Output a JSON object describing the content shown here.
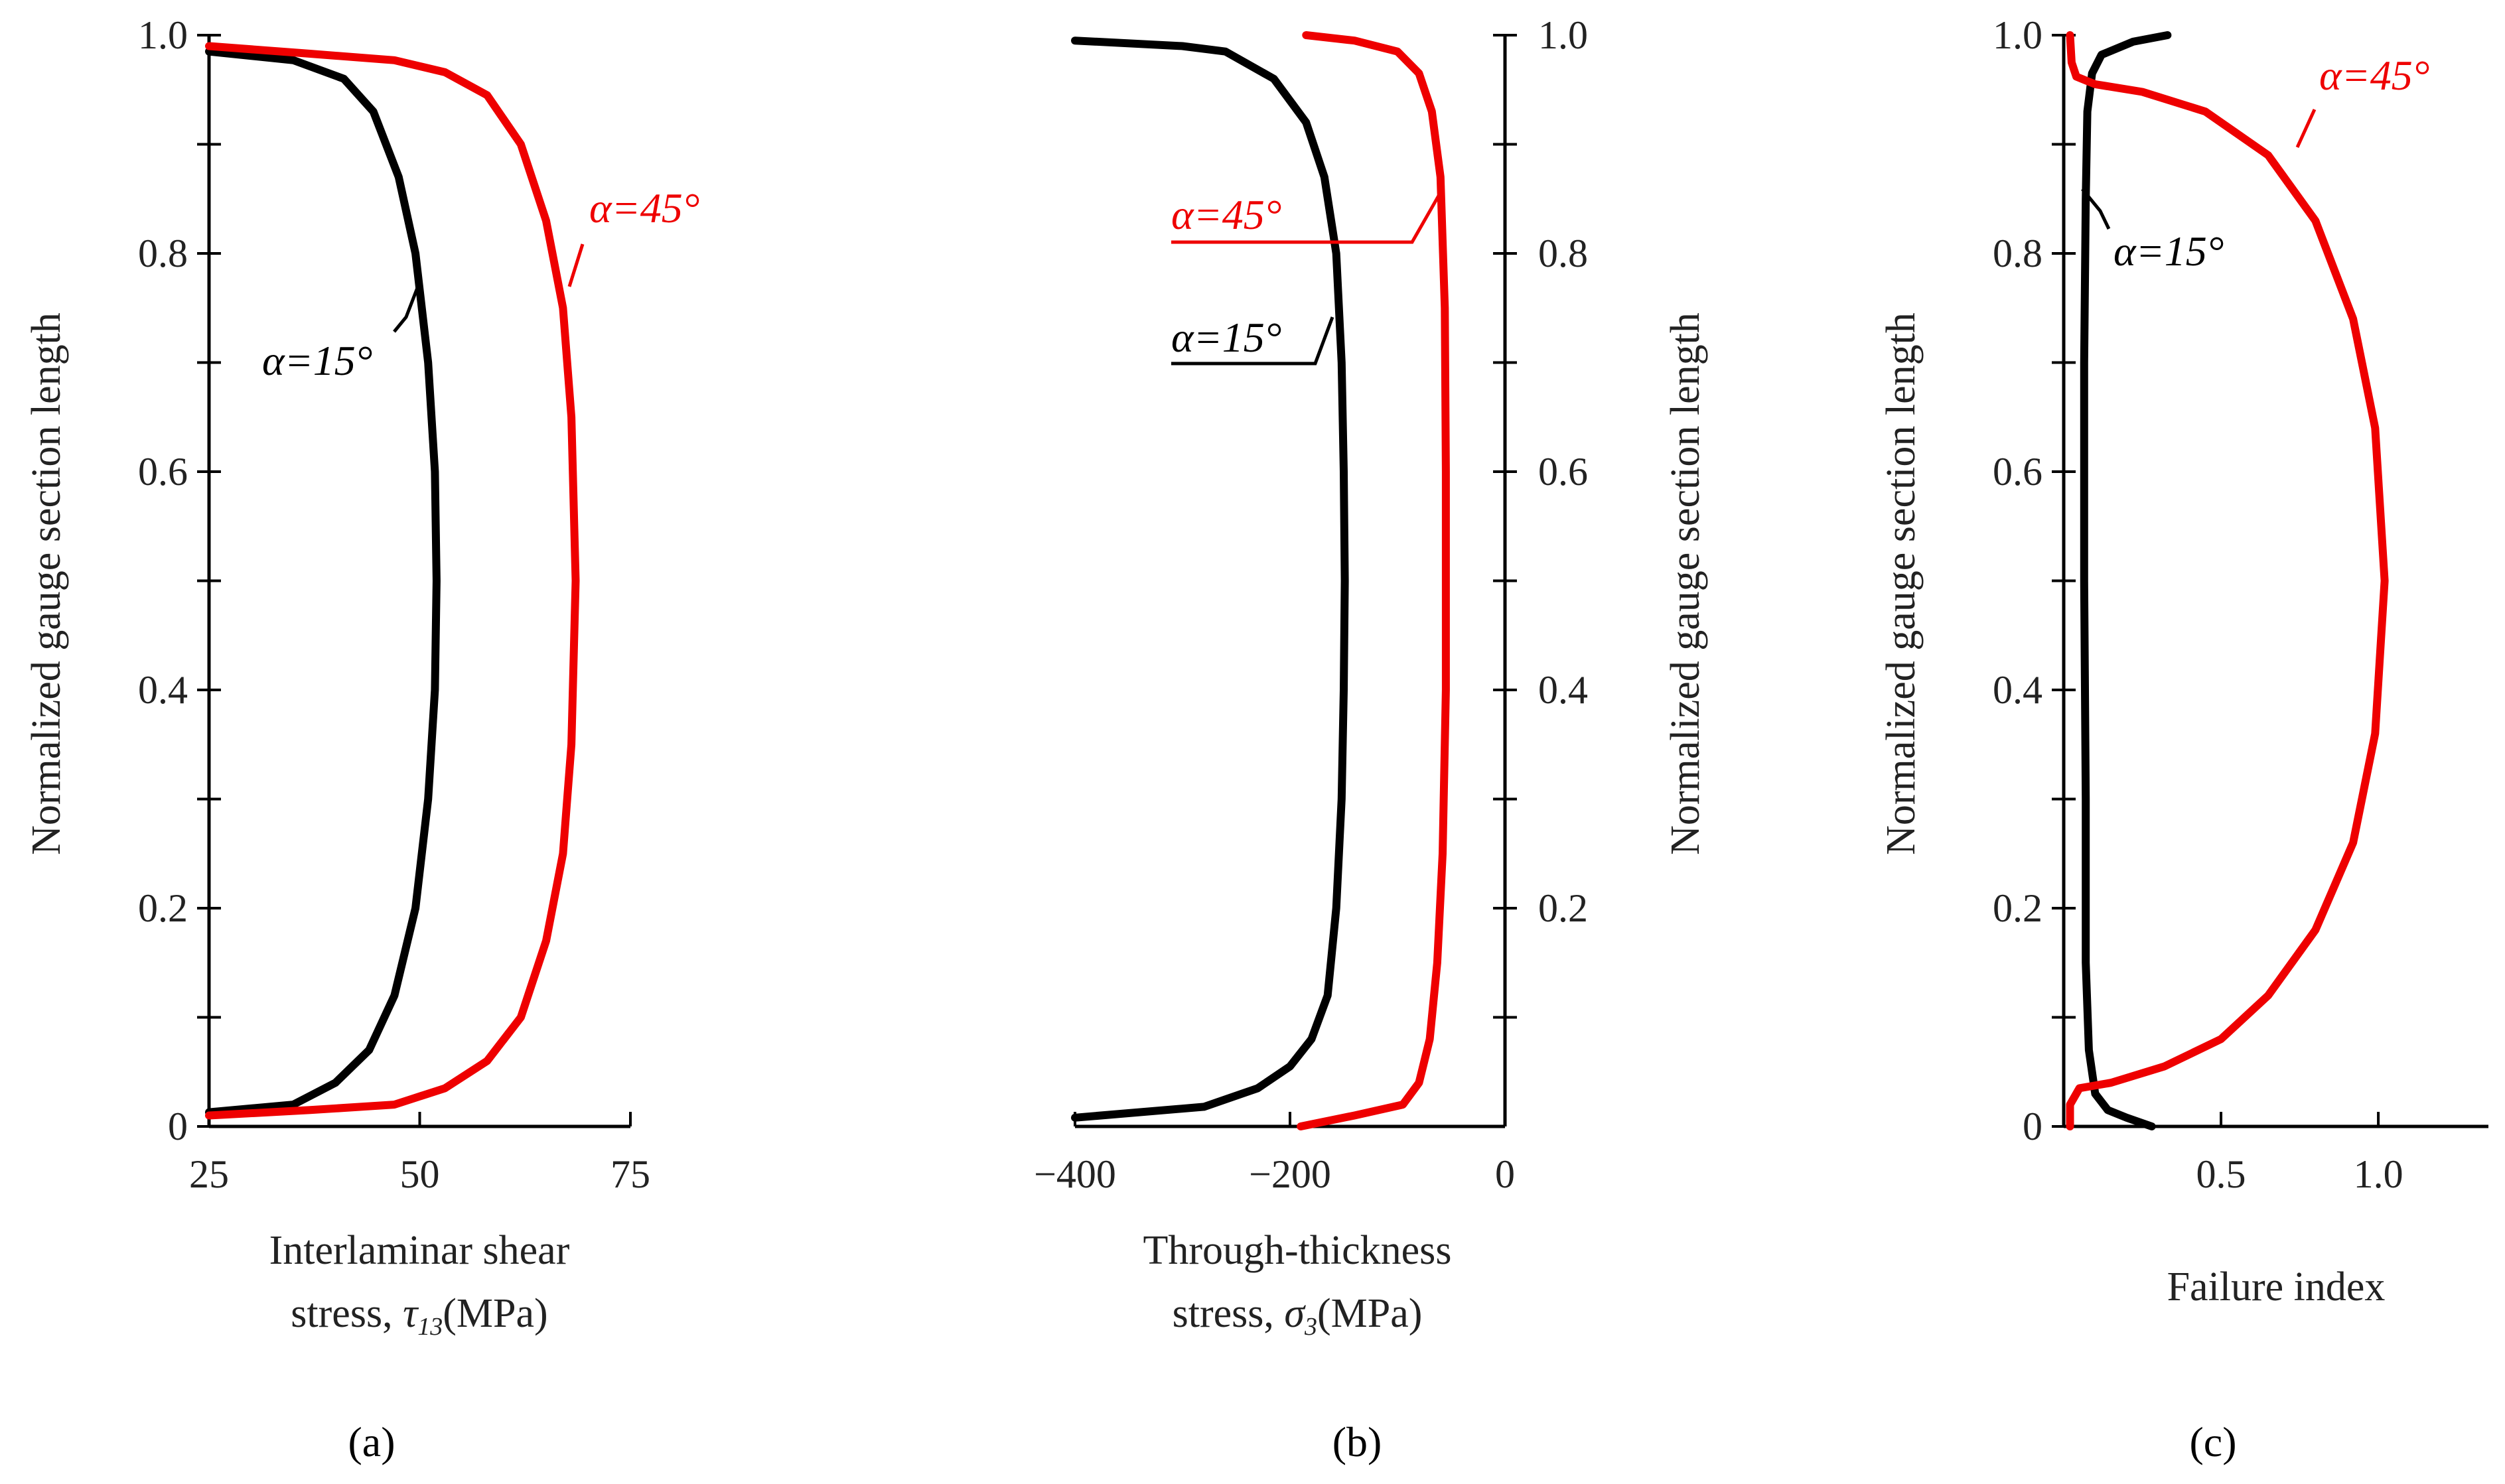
{
  "colors": {
    "alpha15": "#000000",
    "alpha45": "#ee0000"
  },
  "chart_data": [
    {
      "type": "line",
      "panel": "(a)",
      "xlabel_line1": "Interlaminar shear",
      "xlabel_line2_prefix": "stress, ",
      "xlabel_symbol": "τ",
      "xlabel_subscript": "13",
      "xlabel_unit": "(MPa)",
      "ylabel": "Normalized gauge section length",
      "xlim": [
        25,
        75
      ],
      "ylim": [
        0,
        1.0
      ],
      "xticks": [
        {
          "v": 25,
          "label": "25"
        },
        {
          "v": 50,
          "label": "50"
        },
        {
          "v": 75,
          "label": "75"
        }
      ],
      "yticks": [
        {
          "v": 0,
          "label": "0"
        },
        {
          "v": 0.1,
          "label": ""
        },
        {
          "v": 0.2,
          "label": "0.2"
        },
        {
          "v": 0.3,
          "label": ""
        },
        {
          "v": 0.4,
          "label": "0.4"
        },
        {
          "v": 0.5,
          "label": ""
        },
        {
          "v": 0.6,
          "label": "0.6"
        },
        {
          "v": 0.7,
          "label": ""
        },
        {
          "v": 0.8,
          "label": "0.8"
        },
        {
          "v": 0.9,
          "label": ""
        },
        {
          "v": 1.0,
          "label": "1.0"
        }
      ],
      "series": [
        {
          "name": "α=15°",
          "color": "#000000",
          "points": [
            [
              25,
              0.013
            ],
            [
              35,
              0.02
            ],
            [
              40,
              0.04
            ],
            [
              44,
              0.07
            ],
            [
              47,
              0.12
            ],
            [
              49.5,
              0.2
            ],
            [
              51,
              0.3
            ],
            [
              51.8,
              0.4
            ],
            [
              52,
              0.5
            ],
            [
              51.8,
              0.6
            ],
            [
              51,
              0.7
            ],
            [
              49.5,
              0.8
            ],
            [
              47.5,
              0.87
            ],
            [
              44.5,
              0.93
            ],
            [
              41,
              0.96
            ],
            [
              35,
              0.977
            ],
            [
              25,
              0.985
            ]
          ]
        },
        {
          "name": "α=45°",
          "color": "#ee0000",
          "points": [
            [
              25,
              0.01
            ],
            [
              37,
              0.015
            ],
            [
              47,
              0.02
            ],
            [
              53,
              0.035
            ],
            [
              58,
              0.06
            ],
            [
              62,
              0.1
            ],
            [
              65,
              0.17
            ],
            [
              67,
              0.25
            ],
            [
              68,
              0.35
            ],
            [
              68.5,
              0.5
            ],
            [
              68,
              0.65
            ],
            [
              67,
              0.75
            ],
            [
              65,
              0.83
            ],
            [
              62,
              0.9
            ],
            [
              58,
              0.945
            ],
            [
              53,
              0.966
            ],
            [
              47,
              0.977
            ],
            [
              37,
              0.983
            ],
            [
              25,
              0.99
            ]
          ]
        }
      ],
      "annotations": [
        {
          "text": "α=15°",
          "series": 0
        },
        {
          "text": "α=45°",
          "series": 1
        }
      ]
    },
    {
      "type": "line",
      "panel": "(b)",
      "xlabel_line1": "Through-thickness",
      "xlabel_line2_prefix": "stress, ",
      "xlabel_symbol": "σ",
      "xlabel_subscript": "3",
      "xlabel_unit": "(MPa)",
      "ylabel": "Normalized gauge section length",
      "xlim": [
        -400,
        0
      ],
      "ylim": [
        0,
        1.0
      ],
      "xticks": [
        {
          "v": -400,
          "label": "−400"
        },
        {
          "v": -200,
          "label": "−200"
        },
        {
          "v": 0,
          "label": "0"
        }
      ],
      "yticks": [
        {
          "v": 0.1,
          "label": ""
        },
        {
          "v": 0.2,
          "label": "0.2"
        },
        {
          "v": 0.3,
          "label": ""
        },
        {
          "v": 0.4,
          "label": "0.4"
        },
        {
          "v": 0.5,
          "label": ""
        },
        {
          "v": 0.6,
          "label": "0.6"
        },
        {
          "v": 0.7,
          "label": ""
        },
        {
          "v": 0.8,
          "label": "0.8"
        },
        {
          "v": 0.9,
          "label": ""
        },
        {
          "v": 1.0,
          "label": "1.0"
        }
      ],
      "series": [
        {
          "name": "α=15°",
          "color": "#000000",
          "points": [
            [
              -400,
              0.008
            ],
            [
              -280,
              0.018
            ],
            [
              -230,
              0.035
            ],
            [
              -200,
              0.055
            ],
            [
              -180,
              0.08
            ],
            [
              -165,
              0.12
            ],
            [
              -157,
              0.2
            ],
            [
              -152,
              0.3
            ],
            [
              -150,
              0.4
            ],
            [
              -149,
              0.5
            ],
            [
              -150,
              0.6
            ],
            [
              -152,
              0.7
            ],
            [
              -157,
              0.8
            ],
            [
              -168,
              0.87
            ],
            [
              -185,
              0.92
            ],
            [
              -215,
              0.96
            ],
            [
              -260,
              0.985
            ],
            [
              -300,
              0.99
            ],
            [
              -400,
              0.995
            ]
          ]
        },
        {
          "name": "α=45°",
          "color": "#ee0000",
          "points": [
            [
              -190,
              0.0
            ],
            [
              -140,
              0.01
            ],
            [
              -95,
              0.02
            ],
            [
              -80,
              0.04
            ],
            [
              -70,
              0.08
            ],
            [
              -63,
              0.15
            ],
            [
              -58,
              0.25
            ],
            [
              -55,
              0.4
            ],
            [
              -55,
              0.6
            ],
            [
              -56,
              0.75
            ],
            [
              -60,
              0.87
            ],
            [
              -68,
              0.93
            ],
            [
              -80,
              0.965
            ],
            [
              -100,
              0.985
            ],
            [
              -140,
              0.995
            ],
            [
              -185,
              1.0
            ]
          ]
        }
      ],
      "annotations": [
        {
          "text": "α=45°",
          "series": 1
        },
        {
          "text": "α=15°",
          "series": 0
        }
      ]
    },
    {
      "type": "line",
      "panel": "(c)",
      "xlabel_line1": "Failure index",
      "ylabel": "Normalized gauge section length",
      "xlim": [
        0,
        1.35
      ],
      "ylim": [
        0,
        1.0
      ],
      "xticks": [
        {
          "v": 0.5,
          "label": "0.5"
        },
        {
          "v": 1.0,
          "label": "1.0"
        }
      ],
      "yticks": [
        {
          "v": 0,
          "label": "0"
        },
        {
          "v": 0.1,
          "label": ""
        },
        {
          "v": 0.2,
          "label": "0.2"
        },
        {
          "v": 0.3,
          "label": ""
        },
        {
          "v": 0.4,
          "label": "0.4"
        },
        {
          "v": 0.5,
          "label": ""
        },
        {
          "v": 0.6,
          "label": "0.6"
        },
        {
          "v": 0.7,
          "label": ""
        },
        {
          "v": 0.8,
          "label": "0.8"
        },
        {
          "v": 0.9,
          "label": ""
        },
        {
          "v": 1.0,
          "label": "1.0"
        }
      ],
      "series": [
        {
          "name": "α=15°",
          "color": "#000000",
          "points": [
            [
              0.28,
              0.0
            ],
            [
              0.2,
              0.008
            ],
            [
              0.14,
              0.015
            ],
            [
              0.1,
              0.03
            ],
            [
              0.08,
              0.07
            ],
            [
              0.07,
              0.15
            ],
            [
              0.07,
              0.3
            ],
            [
              0.065,
              0.5
            ],
            [
              0.065,
              0.7
            ],
            [
              0.07,
              0.85
            ],
            [
              0.075,
              0.93
            ],
            [
              0.09,
              0.965
            ],
            [
              0.12,
              0.982
            ],
            [
              0.22,
              0.994
            ],
            [
              0.33,
              1.0
            ]
          ]
        },
        {
          "name": "α=45°",
          "color": "#ee0000",
          "points": [
            [
              0.02,
              0.0
            ],
            [
              0.02,
              0.02
            ],
            [
              0.05,
              0.035
            ],
            [
              0.15,
              0.04
            ],
            [
              0.32,
              0.055
            ],
            [
              0.5,
              0.08
            ],
            [
              0.65,
              0.12
            ],
            [
              0.8,
              0.18
            ],
            [
              0.92,
              0.26
            ],
            [
              0.99,
              0.36
            ],
            [
              1.02,
              0.5
            ],
            [
              0.99,
              0.64
            ],
            [
              0.92,
              0.74
            ],
            [
              0.8,
              0.83
            ],
            [
              0.65,
              0.89
            ],
            [
              0.45,
              0.93
            ],
            [
              0.25,
              0.948
            ],
            [
              0.1,
              0.955
            ],
            [
              0.04,
              0.962
            ],
            [
              0.025,
              0.975
            ],
            [
              0.02,
              1.0
            ]
          ]
        }
      ],
      "annotations": [
        {
          "text": "α=15°",
          "series": 0
        },
        {
          "text": "α=45°",
          "series": 1
        }
      ]
    }
  ]
}
